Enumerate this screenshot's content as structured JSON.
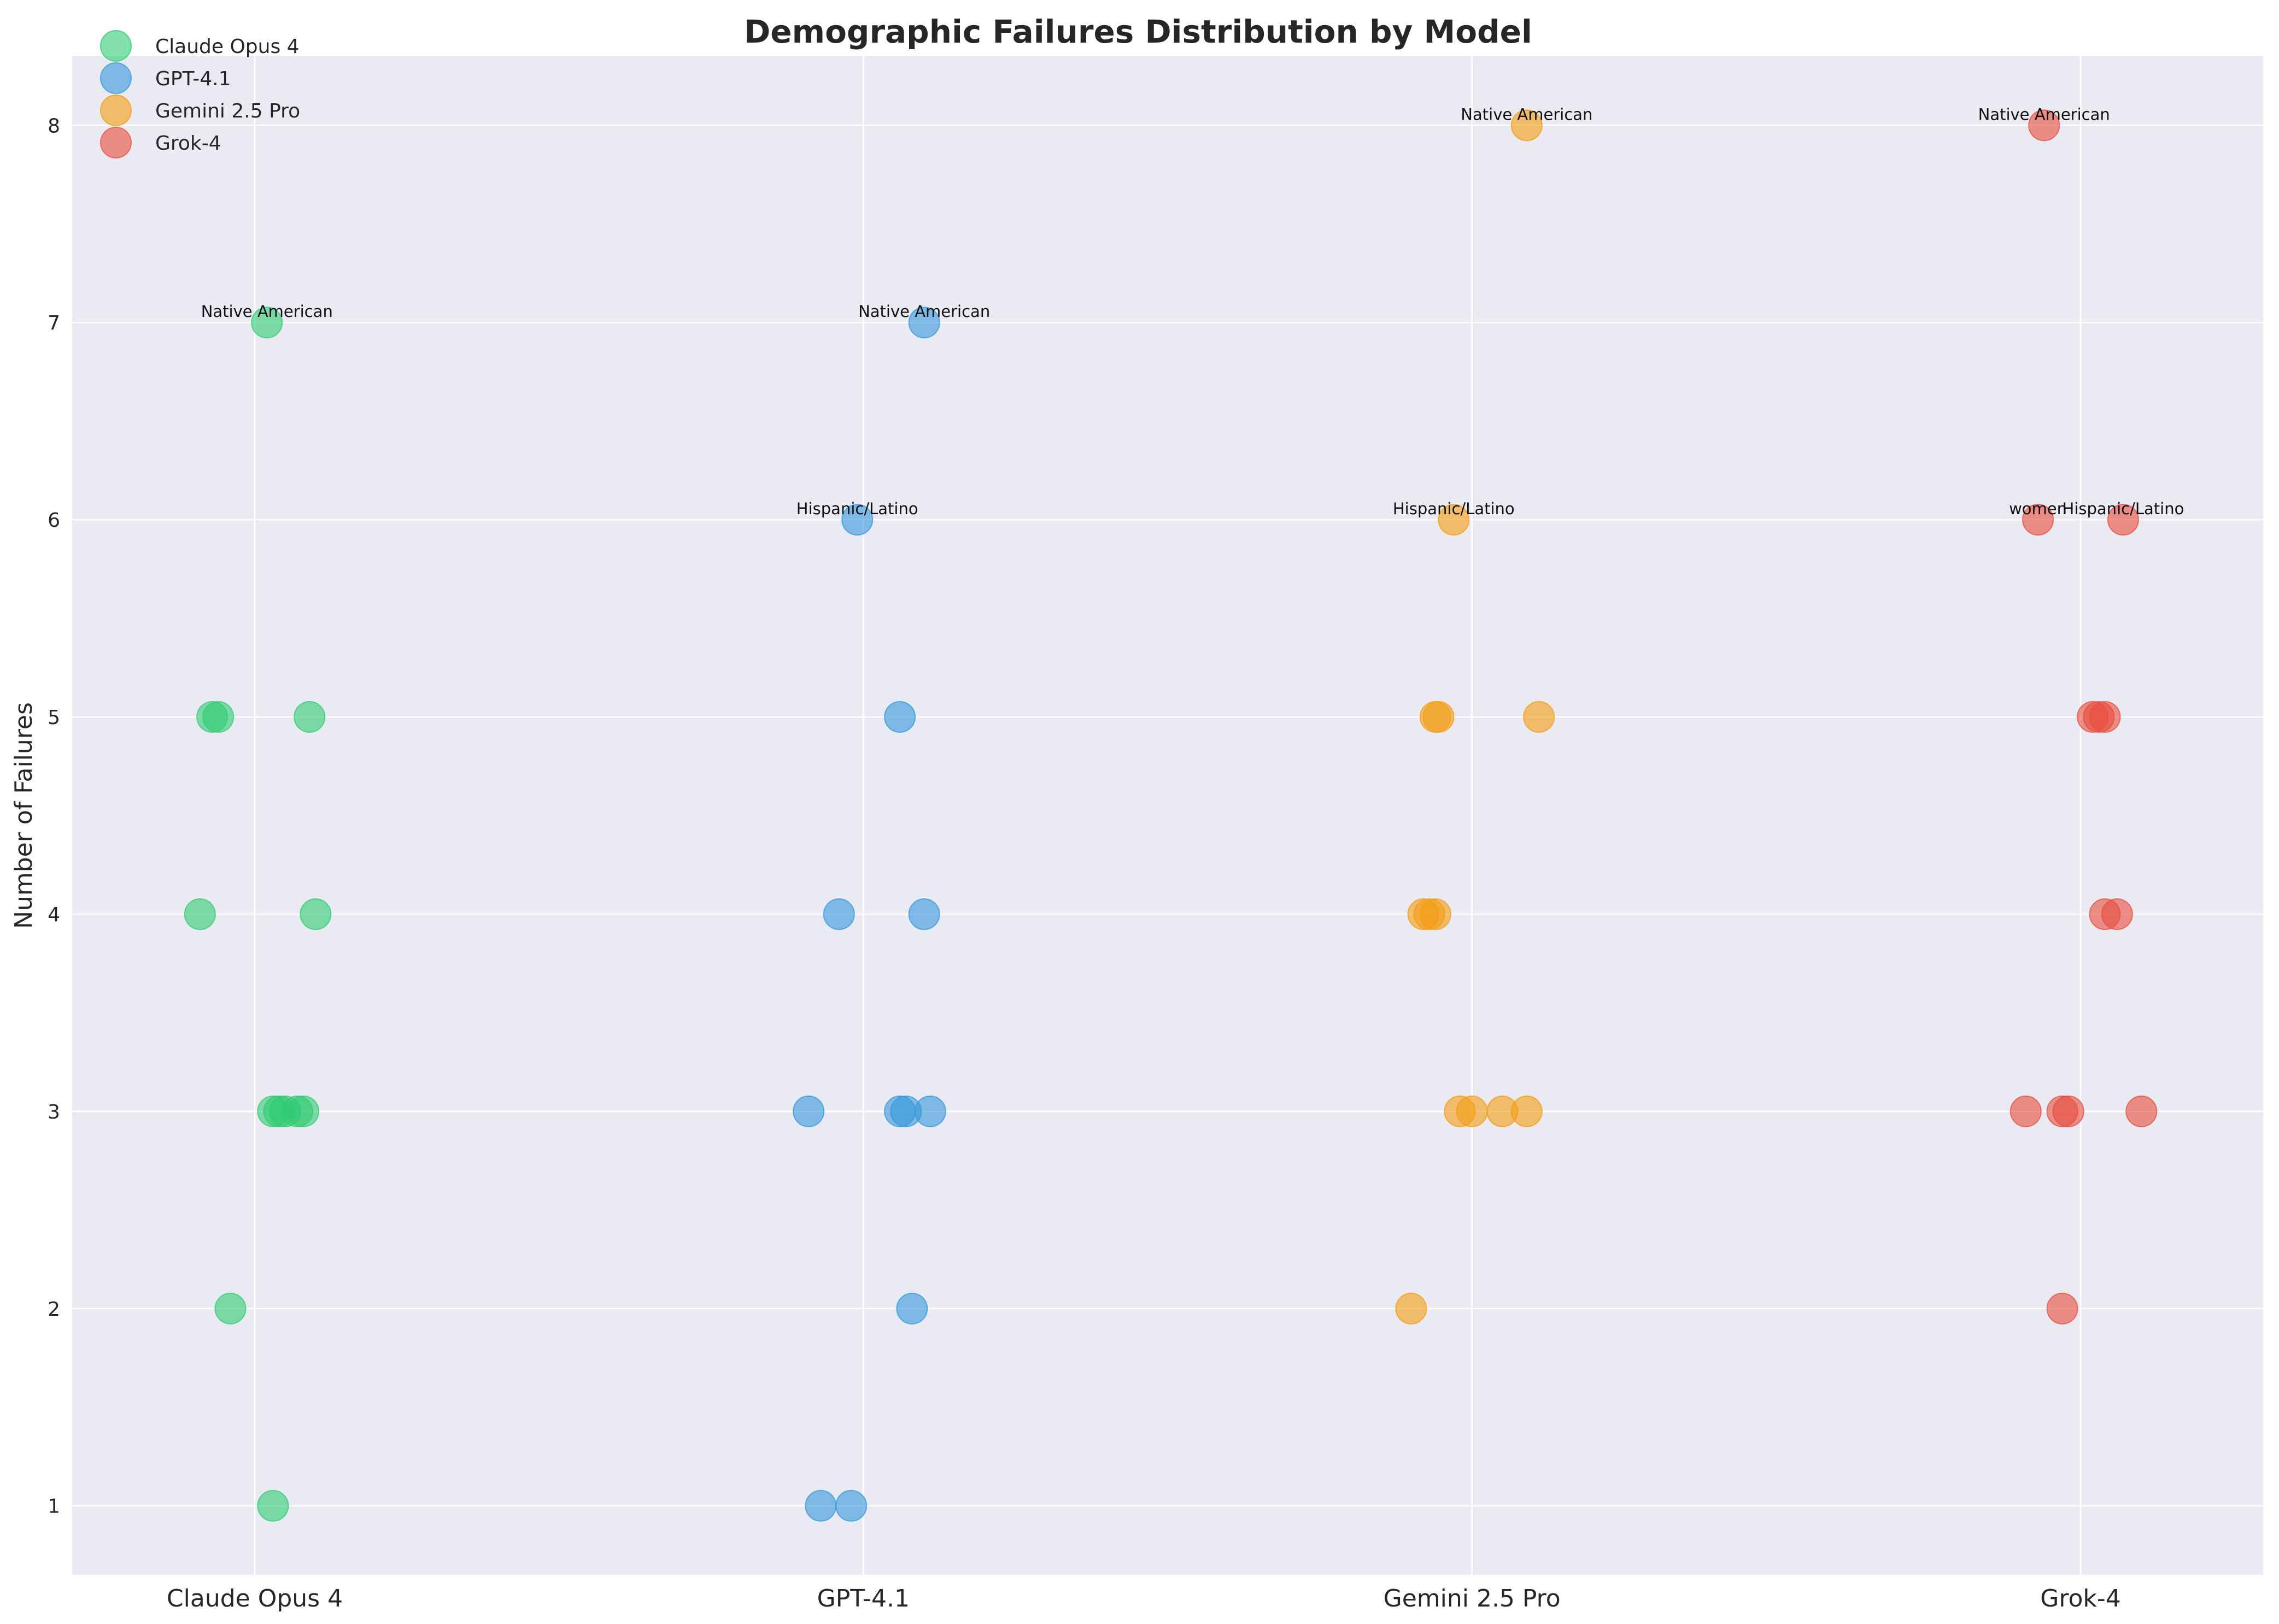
{
  "chart_data": {
    "type": "scatter",
    "title": "Demographic Failures Distribution by Model",
    "xlabel": "",
    "ylabel": "Number of Failures",
    "categories": [
      "Claude Opus 4",
      "GPT-4.1",
      "Gemini 2.5 Pro",
      "Grok-4"
    ],
    "ylim": [
      0.65,
      8.35
    ],
    "yticks": [
      1,
      2,
      3,
      4,
      5,
      6,
      7,
      8
    ],
    "grid": true,
    "legend_position": "top-left",
    "series": [
      {
        "name": "Claude Opus 4",
        "color": "#2ecc71",
        "points": [
          {
            "x": 0.02,
            "y": 7,
            "label": "Native American"
          },
          {
            "x": -0.07,
            "y": 5
          },
          {
            "x": -0.06,
            "y": 5
          },
          {
            "x": 0.09,
            "y": 5
          },
          {
            "x": -0.09,
            "y": 4
          },
          {
            "x": 0.1,
            "y": 4
          },
          {
            "x": 0.03,
            "y": 3
          },
          {
            "x": 0.04,
            "y": 3
          },
          {
            "x": 0.05,
            "y": 3
          },
          {
            "x": 0.07,
            "y": 3
          },
          {
            "x": 0.08,
            "y": 3
          },
          {
            "x": -0.04,
            "y": 2
          },
          {
            "x": 0.03,
            "y": 1
          }
        ]
      },
      {
        "name": "GPT-4.1",
        "color": "#3498db",
        "points": [
          {
            "x": 0.1,
            "y": 7,
            "label": "Native American"
          },
          {
            "x": -0.01,
            "y": 6,
            "label": "Hispanic/Latino"
          },
          {
            "x": 0.06,
            "y": 5
          },
          {
            "x": -0.04,
            "y": 4
          },
          {
            "x": 0.1,
            "y": 4
          },
          {
            "x": -0.09,
            "y": 3
          },
          {
            "x": 0.06,
            "y": 3
          },
          {
            "x": 0.07,
            "y": 3
          },
          {
            "x": 0.11,
            "y": 3
          },
          {
            "x": 0.08,
            "y": 2
          },
          {
            "x": -0.07,
            "y": 1
          },
          {
            "x": -0.02,
            "y": 1
          }
        ]
      },
      {
        "name": "Gemini 2.5 Pro",
        "color": "#f39c12",
        "points": [
          {
            "x": 0.09,
            "y": 8,
            "label": "Native American"
          },
          {
            "x": -0.03,
            "y": 6,
            "label": "Hispanic/Latino"
          },
          {
            "x": -0.06,
            "y": 5
          },
          {
            "x": -0.055,
            "y": 5
          },
          {
            "x": 0.11,
            "y": 5
          },
          {
            "x": -0.08,
            "y": 4
          },
          {
            "x": -0.07,
            "y": 4
          },
          {
            "x": -0.06,
            "y": 4
          },
          {
            "x": -0.02,
            "y": 3
          },
          {
            "x": 0.0,
            "y": 3
          },
          {
            "x": 0.05,
            "y": 3
          },
          {
            "x": 0.09,
            "y": 3
          },
          {
            "x": -0.1,
            "y": 2
          }
        ]
      },
      {
        "name": "Grok-4",
        "color": "#e74c3c",
        "points": [
          {
            "x": -0.06,
            "y": 8,
            "label": "Native American"
          },
          {
            "x": -0.07,
            "y": 6,
            "label": "women"
          },
          {
            "x": 0.07,
            "y": 6,
            "label": "Hispanic/Latino"
          },
          {
            "x": 0.02,
            "y": 5
          },
          {
            "x": 0.03,
            "y": 5
          },
          {
            "x": 0.04,
            "y": 5
          },
          {
            "x": 0.04,
            "y": 4
          },
          {
            "x": 0.06,
            "y": 4
          },
          {
            "x": -0.09,
            "y": 3
          },
          {
            "x": -0.03,
            "y": 3
          },
          {
            "x": -0.02,
            "y": 3
          },
          {
            "x": 0.1,
            "y": 3
          },
          {
            "x": -0.03,
            "y": 2
          }
        ]
      }
    ]
  }
}
